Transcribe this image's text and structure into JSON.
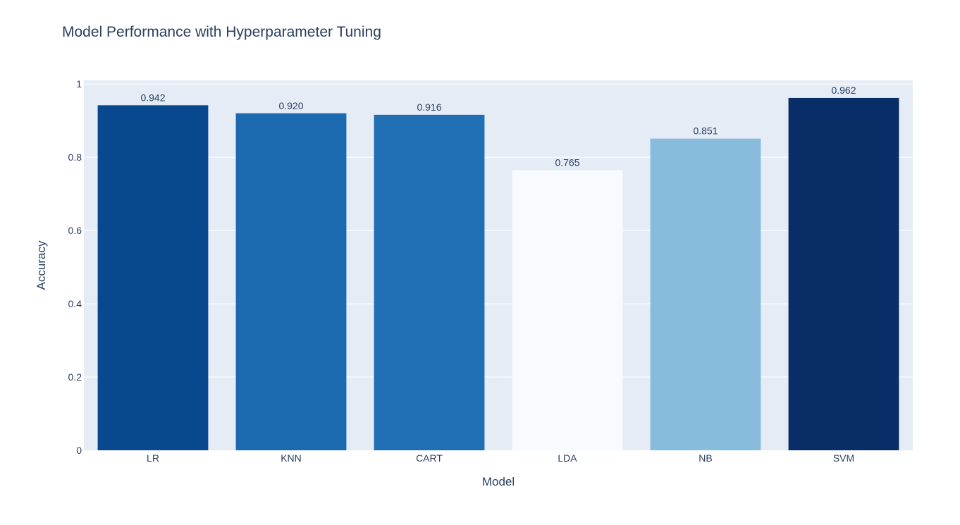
{
  "chart_data": {
    "type": "bar",
    "title": "Model Performance with Hyperparameter Tuning",
    "xlabel": "Model",
    "ylabel": "Accuracy",
    "categories": [
      "LR",
      "KNN",
      "CART",
      "LDA",
      "NB",
      "SVM"
    ],
    "values": [
      0.942,
      0.92,
      0.916,
      0.765,
      0.851,
      0.962
    ],
    "value_labels": [
      "0.942",
      "0.920",
      "0.916",
      "0.765",
      "0.851",
      "0.962"
    ],
    "bar_colors": [
      "#08488e",
      "#1b69af",
      "#206fb4",
      "#f7fbff",
      "#87bcdc",
      "#082d67"
    ],
    "y_ticks": [
      0,
      0.2,
      0.4,
      0.6,
      0.8,
      1
    ],
    "y_tick_labels": [
      "0",
      "0.2",
      "0.4",
      "0.6",
      "0.8",
      "1"
    ],
    "ylim": [
      0,
      1.01
    ],
    "grid": true,
    "legend": "none",
    "colors": {
      "plot_background": "#e5ecf6",
      "text": "#2a3f5f"
    }
  }
}
